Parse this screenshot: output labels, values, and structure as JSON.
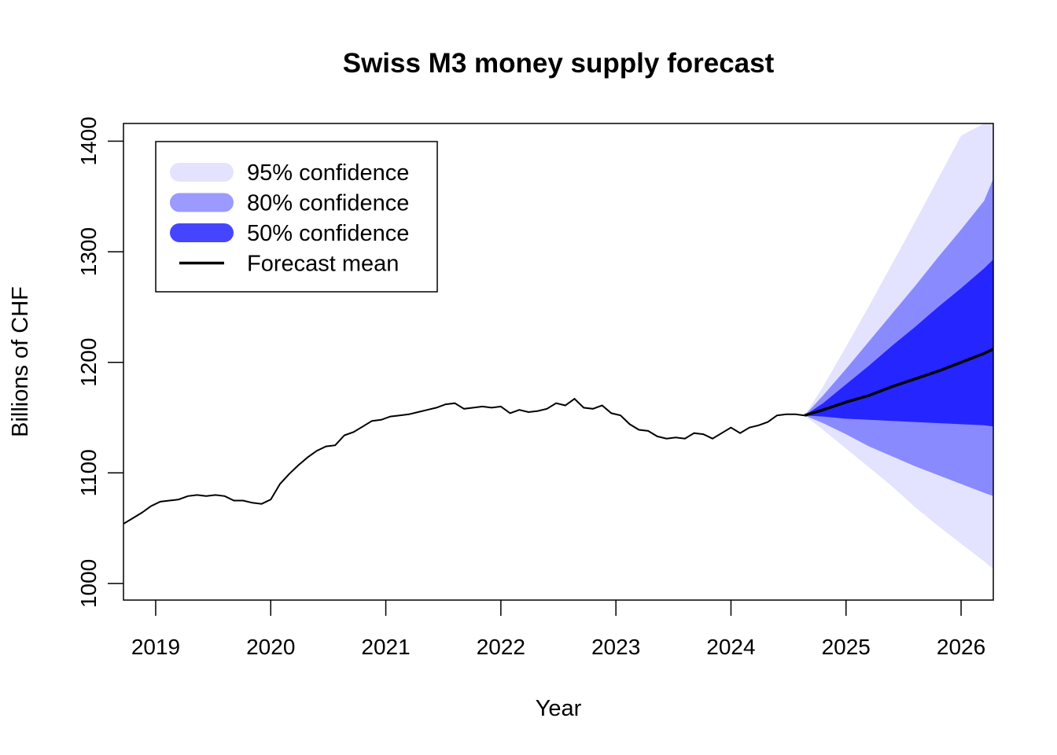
{
  "chart_data": {
    "type": "line",
    "title": "Swiss M3 money supply forecast",
    "xlabel": "Year",
    "ylabel": "Billions of CHF",
    "xlim": [
      2018.72,
      2026.28
    ],
    "ylim": [
      985,
      1416
    ],
    "x_ticks": [
      2019,
      2020,
      2021,
      2022,
      2023,
      2024,
      2025,
      2026
    ],
    "y_ticks": [
      1000,
      1100,
      1200,
      1300,
      1400
    ],
    "legend": {
      "position": "top-left",
      "entries": [
        {
          "label": "95% confidence",
          "color": "#e3e3ff",
          "kind": "band"
        },
        {
          "label": "80% confidence",
          "color": "#9a9aff",
          "kind": "band"
        },
        {
          "label": "50% confidence",
          "color": "#4545ff",
          "kind": "band"
        },
        {
          "label": "Forecast mean",
          "color": "#000000",
          "kind": "line"
        }
      ]
    },
    "colors": {
      "ci95": "#e3e3ff",
      "ci80": "#8a8aff",
      "ci50": "#2525ff",
      "history": "#000000",
      "mean": "#000000"
    },
    "history": {
      "x": [
        2018.72,
        2018.8,
        2018.88,
        2018.96,
        2019.04,
        2019.12,
        2019.2,
        2019.28,
        2019.36,
        2019.44,
        2019.52,
        2019.6,
        2019.68,
        2019.76,
        2019.84,
        2019.92,
        2020.0,
        2020.08,
        2020.16,
        2020.24,
        2020.32,
        2020.4,
        2020.48,
        2020.56,
        2020.64,
        2020.72,
        2020.8,
        2020.88,
        2020.96,
        2021.04,
        2021.12,
        2021.2,
        2021.28,
        2021.36,
        2021.44,
        2021.52,
        2021.6,
        2021.68,
        2021.76,
        2021.84,
        2021.92,
        2022.0,
        2022.08,
        2022.16,
        2022.24,
        2022.32,
        2022.4,
        2022.48,
        2022.56,
        2022.64,
        2022.72,
        2022.8,
        2022.88,
        2022.96,
        2023.04,
        2023.12,
        2023.2,
        2023.28,
        2023.36,
        2023.44,
        2023.52,
        2023.6,
        2023.68,
        2023.76,
        2023.84,
        2023.92,
        2024.0,
        2024.08,
        2024.16,
        2024.24,
        2024.32,
        2024.4,
        2024.48,
        2024.56,
        2024.64
      ],
      "y": [
        1054,
        1059,
        1064,
        1070,
        1074,
        1075,
        1076,
        1079,
        1080,
        1079,
        1080,
        1079,
        1075,
        1075,
        1073,
        1072,
        1076,
        1090,
        1099,
        1107,
        1114,
        1120,
        1124,
        1125,
        1134,
        1137,
        1142,
        1147,
        1148,
        1151,
        1152,
        1153,
        1155,
        1157,
        1159,
        1162,
        1163,
        1158,
        1159,
        1160,
        1159,
        1160,
        1154,
        1157,
        1155,
        1156,
        1158,
        1163,
        1161,
        1167,
        1159,
        1158,
        1161,
        1154,
        1152,
        1144,
        1139,
        1138,
        1133,
        1131,
        1132,
        1131,
        1136,
        1135,
        1131,
        1136,
        1141,
        1136,
        1141,
        1143,
        1146,
        1152,
        1153,
        1153,
        1152
      ]
    },
    "forecast": {
      "x": [
        2024.64,
        2024.8,
        2025.0,
        2025.2,
        2025.4,
        2025.6,
        2025.8,
        2026.0,
        2026.2,
        2026.28
      ],
      "mean": [
        1152,
        1157,
        1164,
        1170,
        1178,
        1185,
        1192,
        1200,
        1208,
        1212
      ],
      "lo50": [
        1152,
        1151,
        1149,
        1148,
        1147,
        1146,
        1145,
        1144,
        1143,
        1142
      ],
      "hi50": [
        1152,
        1163,
        1180,
        1197,
        1215,
        1232,
        1250,
        1267,
        1285,
        1293
      ],
      "lo80": [
        1152,
        1145,
        1135,
        1124,
        1115,
        1106,
        1098,
        1090,
        1082,
        1079
      ],
      "hi80": [
        1152,
        1170,
        1194,
        1219,
        1244,
        1269,
        1295,
        1320,
        1346,
        1366
      ],
      "lo95": [
        1152,
        1139,
        1122,
        1105,
        1088,
        1069,
        1052,
        1036,
        1020,
        1013
      ],
      "hi95": [
        1152,
        1178,
        1214,
        1251,
        1289,
        1327,
        1366,
        1405,
        1416,
        1416
      ]
    }
  }
}
